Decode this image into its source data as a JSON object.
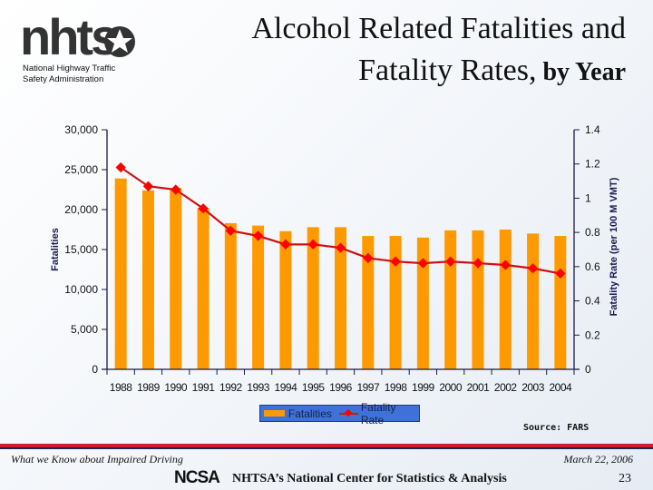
{
  "header": {
    "logo_text": "nhtsa",
    "agency_line1": "National Highway Traffic",
    "agency_line2": "Safety Administration",
    "title_line1": "Alcohol Related Fatalities and",
    "title_line2a": "Fatality Rates,",
    "title_line2b": " by Year"
  },
  "chart_data": {
    "type": "bar+line",
    "categories": [
      "1988",
      "1989",
      "1990",
      "1991",
      "1992",
      "1993",
      "1994",
      "1995",
      "1996",
      "1997",
      "1998",
      "1999",
      "2000",
      "2001",
      "2002",
      "2003",
      "2004"
    ],
    "series": [
      {
        "name": "Fatalities",
        "type": "bar",
        "axis": "left",
        "color": "#ff9900",
        "values": [
          23900,
          22400,
          22700,
          20200,
          18300,
          18000,
          17300,
          17800,
          17800,
          16700,
          16700,
          16500,
          17400,
          17400,
          17500,
          17000,
          16700
        ]
      },
      {
        "name": "Fatality Rate",
        "type": "line",
        "axis": "right",
        "color": "#e01010",
        "values": [
          1.18,
          1.07,
          1.05,
          0.94,
          0.81,
          0.78,
          0.73,
          0.73,
          0.71,
          0.65,
          0.63,
          0.62,
          0.63,
          0.62,
          0.61,
          0.59,
          0.56
        ]
      }
    ],
    "ylabel": "Fatalities",
    "y2label": "Fatality Rate (per 100 M VMT)",
    "ylim": [
      0,
      30000
    ],
    "y2lim": [
      0,
      1.4
    ],
    "yticks": [
      "0",
      "5,000",
      "10,000",
      "15,000",
      "20,000",
      "25,000",
      "30,000"
    ],
    "y2ticks": [
      "0",
      "0.2",
      "0.4",
      "0.6",
      "0.8",
      "1",
      "1.2",
      "1.4"
    ],
    "grid": false,
    "legend": "bottom"
  },
  "legend": {
    "fatalities": "Fatalities",
    "rate": "Fatality Rate"
  },
  "source": "Source:  FARS",
  "footer": {
    "left": "What we Know about Impaired Driving",
    "date": "March 22, 2006",
    "ncsa_logo": "NCSA",
    "center": "NHTSA’s National Center for Statistics & Analysis",
    "page": "23"
  }
}
